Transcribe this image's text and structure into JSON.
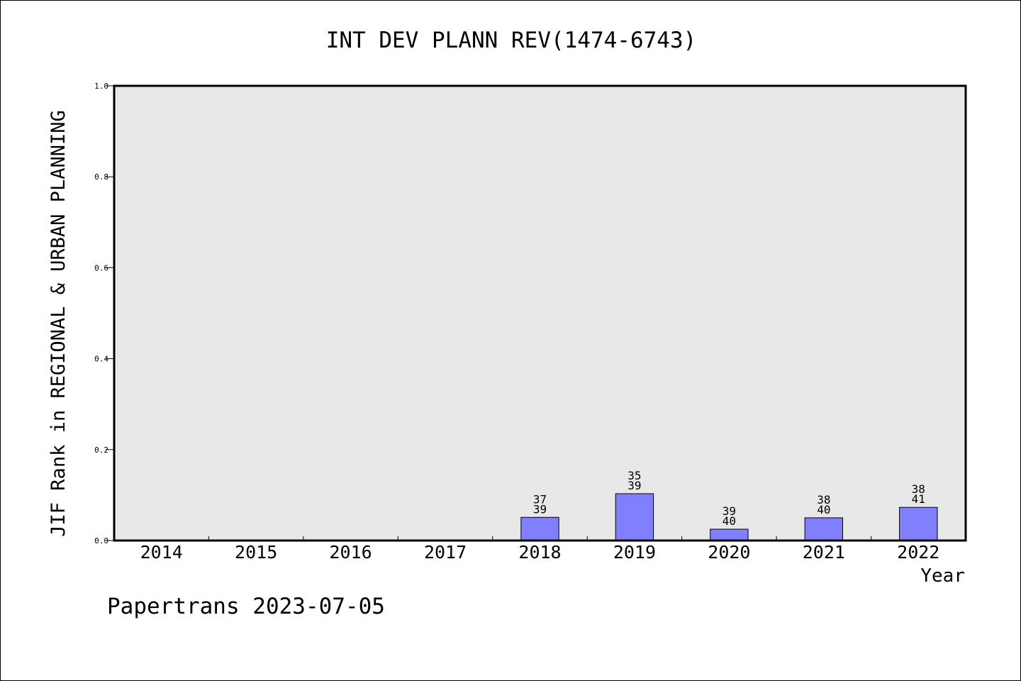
{
  "chart_data": {
    "type": "bar",
    "title": "INT DEV PLANN REV(1474-6743)",
    "xlabel": "Year",
    "ylabel": "JIF Rank in REGIONAL & URBAN PLANNING",
    "ylim": [
      0,
      1.0
    ],
    "yticks": [
      "0.0",
      "0.2",
      "0.4",
      "0.6",
      "0.8",
      "1.0"
    ],
    "categories": [
      "2014",
      "2015",
      "2016",
      "2017",
      "2018",
      "2019",
      "2020",
      "2021",
      "2022"
    ],
    "values": [
      null,
      null,
      null,
      null,
      0.051,
      0.103,
      0.025,
      0.05,
      0.073
    ],
    "bar_labels": [
      null,
      null,
      null,
      null,
      {
        "rank": "37",
        "total": "39"
      },
      {
        "rank": "35",
        "total": "39"
      },
      {
        "rank": "39",
        "total": "40"
      },
      {
        "rank": "38",
        "total": "40"
      },
      {
        "rank": "38",
        "total": "41"
      }
    ],
    "colors": {
      "bar": "#8080ff",
      "plot_bg": "#e8e8e8",
      "axis": "#000000"
    },
    "grid": false,
    "legend": "none"
  },
  "footer": {
    "text": "Papertrans 2023-07-05"
  }
}
